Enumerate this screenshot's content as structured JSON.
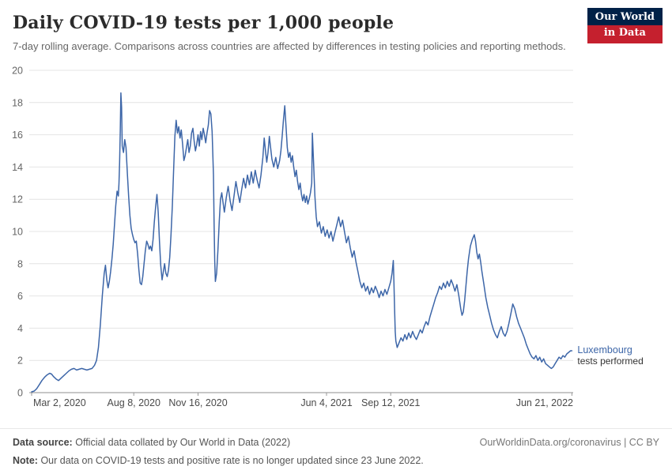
{
  "header": {
    "title": "Daily COVID-19 tests per 1,000 people",
    "subtitle": "7-day rolling average. Comparisons across countries are affected by differences in testing policies and reporting methods.",
    "logo": {
      "line1": "Our World",
      "line2": "in Data"
    }
  },
  "footer": {
    "source_label": "Data source:",
    "source_text": "Official data collated by Our World in Data (2022)",
    "right_text": "OurWorldinData.org/coronavirus | CC BY",
    "note_label": "Note:",
    "note_text": "Our data on COVID-19 tests and positive rate is no longer updated since 23 June 2022."
  },
  "colors": {
    "line": "#3d66a8",
    "entity_label": "#3d66a8",
    "entity_sublabel": "#333333",
    "grid": "#e4e4e4",
    "axis_baseline": "#8f8f8f",
    "tick_mark": "#999999",
    "y_tick_text": "#666666",
    "x_tick_text": "#4a4a4a",
    "logo_navy": "#002147",
    "logo_red": "#c5202e"
  },
  "chart_data": {
    "type": "line",
    "title": "Daily COVID-19 tests per 1,000 people",
    "series_name": "Luxembourg",
    "series_sublabel": "tests performed",
    "x_unit": "days since Mar 2, 2020",
    "x_domain": [
      0,
      843
    ],
    "ylim": [
      0,
      20
    ],
    "y_ticks": [
      0,
      2,
      4,
      6,
      8,
      10,
      12,
      14,
      16,
      18,
      20
    ],
    "x_ticks": [
      {
        "label": "Mar 2, 2020",
        "day": 0
      },
      {
        "label": "Aug 8, 2020",
        "day": 159
      },
      {
        "label": "Nov 16, 2020",
        "day": 259
      },
      {
        "label": "Jun 4, 2021",
        "day": 459
      },
      {
        "label": "Sep 12, 2021",
        "day": 559
      },
      {
        "label": "Jun 21, 2022",
        "day": 841
      }
    ],
    "grid": true,
    "legend_position": "line-end",
    "points": [
      [
        0,
        0.05
      ],
      [
        4,
        0.1
      ],
      [
        8,
        0.25
      ],
      [
        12,
        0.5
      ],
      [
        16,
        0.75
      ],
      [
        20,
        0.95
      ],
      [
        24,
        1.1
      ],
      [
        28,
        1.2
      ],
      [
        31,
        1.15
      ],
      [
        34,
        1.0
      ],
      [
        38,
        0.85
      ],
      [
        42,
        0.75
      ],
      [
        46,
        0.9
      ],
      [
        50,
        1.05
      ],
      [
        54,
        1.2
      ],
      [
        58,
        1.35
      ],
      [
        62,
        1.45
      ],
      [
        66,
        1.5
      ],
      [
        70,
        1.4
      ],
      [
        74,
        1.45
      ],
      [
        78,
        1.5
      ],
      [
        82,
        1.45
      ],
      [
        86,
        1.4
      ],
      [
        90,
        1.45
      ],
      [
        94,
        1.5
      ],
      [
        98,
        1.7
      ],
      [
        101,
        2.0
      ],
      [
        104,
        2.8
      ],
      [
        107,
        4.2
      ],
      [
        110,
        6.0
      ],
      [
        113,
        7.4
      ],
      [
        115,
        7.9
      ],
      [
        117,
        7.0
      ],
      [
        119,
        6.5
      ],
      [
        121,
        6.9
      ],
      [
        123,
        7.5
      ],
      [
        125,
        8.3
      ],
      [
        127,
        9.2
      ],
      [
        129,
        10.4
      ],
      [
        131,
        11.6
      ],
      [
        133,
        12.5
      ],
      [
        135,
        12.2
      ],
      [
        136,
        13.0
      ],
      [
        137,
        14.3
      ],
      [
        138,
        16.2
      ],
      [
        139,
        18.6
      ],
      [
        140,
        17.7
      ],
      [
        141,
        15.3
      ],
      [
        143,
        14.9
      ],
      [
        145,
        15.7
      ],
      [
        147,
        15.2
      ],
      [
        149,
        13.6
      ],
      [
        151,
        12.2
      ],
      [
        153,
        11.0
      ],
      [
        155,
        10.2
      ],
      [
        157,
        9.8
      ],
      [
        159,
        9.5
      ],
      [
        161,
        9.3
      ],
      [
        163,
        9.4
      ],
      [
        165,
        8.6
      ],
      [
        167,
        7.6
      ],
      [
        169,
        6.8
      ],
      [
        171,
        6.7
      ],
      [
        173,
        7.2
      ],
      [
        175,
        8.0
      ],
      [
        177,
        8.8
      ],
      [
        179,
        9.4
      ],
      [
        181,
        9.2
      ],
      [
        183,
        8.9
      ],
      [
        185,
        9.1
      ],
      [
        187,
        8.8
      ],
      [
        189,
        9.5
      ],
      [
        191,
        10.6
      ],
      [
        193,
        11.5
      ],
      [
        195,
        12.3
      ],
      [
        197,
        11.2
      ],
      [
        199,
        9.4
      ],
      [
        201,
        7.9
      ],
      [
        203,
        7.0
      ],
      [
        205,
        7.5
      ],
      [
        207,
        8.0
      ],
      [
        209,
        7.4
      ],
      [
        211,
        7.2
      ],
      [
        213,
        7.6
      ],
      [
        215,
        8.4
      ],
      [
        217,
        9.8
      ],
      [
        219,
        11.6
      ],
      [
        221,
        13.8
      ],
      [
        223,
        15.9
      ],
      [
        225,
        16.9
      ],
      [
        227,
        16.1
      ],
      [
        229,
        16.5
      ],
      [
        231,
        15.8
      ],
      [
        233,
        16.3
      ],
      [
        235,
        15.4
      ],
      [
        237,
        14.4
      ],
      [
        239,
        14.7
      ],
      [
        241,
        15.2
      ],
      [
        243,
        15.7
      ],
      [
        245,
        14.9
      ],
      [
        247,
        15.3
      ],
      [
        249,
        16.1
      ],
      [
        251,
        16.4
      ],
      [
        253,
        15.6
      ],
      [
        255,
        15.0
      ],
      [
        257,
        15.4
      ],
      [
        259,
        16.0
      ],
      [
        261,
        15.3
      ],
      [
        263,
        16.2
      ],
      [
        265,
        15.7
      ],
      [
        267,
        16.4
      ],
      [
        269,
        16.0
      ],
      [
        271,
        15.5
      ],
      [
        273,
        16.1
      ],
      [
        275,
        16.6
      ],
      [
        277,
        17.5
      ],
      [
        279,
        17.3
      ],
      [
        281,
        16.2
      ],
      [
        283,
        13.5
      ],
      [
        284,
        10.5
      ],
      [
        285,
        8.2
      ],
      [
        286,
        6.9
      ],
      [
        288,
        7.4
      ],
      [
        290,
        8.8
      ],
      [
        292,
        10.6
      ],
      [
        294,
        12.0
      ],
      [
        296,
        12.4
      ],
      [
        298,
        11.8
      ],
      [
        300,
        11.2
      ],
      [
        303,
        12.1
      ],
      [
        306,
        12.8
      ],
      [
        309,
        11.9
      ],
      [
        312,
        11.3
      ],
      [
        315,
        12.2
      ],
      [
        318,
        13.1
      ],
      [
        321,
        12.4
      ],
      [
        324,
        11.8
      ],
      [
        327,
        12.6
      ],
      [
        330,
        13.3
      ],
      [
        333,
        12.7
      ],
      [
        336,
        13.5
      ],
      [
        339,
        12.9
      ],
      [
        342,
        13.7
      ],
      [
        345,
        13.0
      ],
      [
        348,
        13.8
      ],
      [
        351,
        13.2
      ],
      [
        354,
        12.7
      ],
      [
        357,
        13.5
      ],
      [
        360,
        14.6
      ],
      [
        362,
        15.8
      ],
      [
        364,
        15.0
      ],
      [
        366,
        14.3
      ],
      [
        368,
        14.9
      ],
      [
        370,
        15.9
      ],
      [
        372,
        15.2
      ],
      [
        374,
        14.5
      ],
      [
        377,
        14.0
      ],
      [
        380,
        14.6
      ],
      [
        383,
        13.9
      ],
      [
        386,
        14.4
      ],
      [
        388,
        15.0
      ],
      [
        390,
        15.9
      ],
      [
        392,
        16.9
      ],
      [
        394,
        17.8
      ],
      [
        396,
        16.5
      ],
      [
        398,
        15.2
      ],
      [
        400,
        14.6
      ],
      [
        402,
        14.9
      ],
      [
        404,
        14.3
      ],
      [
        406,
        14.7
      ],
      [
        408,
        14.0
      ],
      [
        410,
        13.4
      ],
      [
        412,
        13.8
      ],
      [
        414,
        13.1
      ],
      [
        416,
        12.6
      ],
      [
        418,
        13.0
      ],
      [
        420,
        12.3
      ],
      [
        422,
        11.9
      ],
      [
        424,
        12.3
      ],
      [
        426,
        11.8
      ],
      [
        428,
        12.2
      ],
      [
        430,
        11.7
      ],
      [
        432,
        12.0
      ],
      [
        434,
        12.4
      ],
      [
        436,
        13.0
      ],
      [
        437,
        16.1
      ],
      [
        439,
        14.2
      ],
      [
        441,
        12.2
      ],
      [
        443,
        10.9
      ],
      [
        445,
        10.3
      ],
      [
        448,
        10.6
      ],
      [
        451,
        9.9
      ],
      [
        454,
        10.3
      ],
      [
        457,
        9.7
      ],
      [
        460,
        10.1
      ],
      [
        463,
        9.6
      ],
      [
        466,
        10.0
      ],
      [
        469,
        9.4
      ],
      [
        472,
        9.9
      ],
      [
        475,
        10.4
      ],
      [
        478,
        10.9
      ],
      [
        481,
        10.3
      ],
      [
        484,
        10.7
      ],
      [
        487,
        10.0
      ],
      [
        490,
        9.3
      ],
      [
        493,
        9.7
      ],
      [
        496,
        9.0
      ],
      [
        499,
        8.4
      ],
      [
        502,
        8.8
      ],
      [
        505,
        8.1
      ],
      [
        508,
        7.5
      ],
      [
        511,
        6.9
      ],
      [
        514,
        6.5
      ],
      [
        517,
        6.8
      ],
      [
        520,
        6.3
      ],
      [
        523,
        6.6
      ],
      [
        526,
        6.1
      ],
      [
        529,
        6.5
      ],
      [
        532,
        6.2
      ],
      [
        535,
        6.6
      ],
      [
        538,
        6.3
      ],
      [
        541,
        5.9
      ],
      [
        544,
        6.3
      ],
      [
        547,
        6.0
      ],
      [
        550,
        6.4
      ],
      [
        553,
        6.1
      ],
      [
        556,
        6.5
      ],
      [
        559,
        6.9
      ],
      [
        561,
        7.4
      ],
      [
        563,
        8.2
      ],
      [
        564,
        6.8
      ],
      [
        565,
        5.2
      ],
      [
        566,
        3.8
      ],
      [
        567,
        3.2
      ],
      [
        569,
        2.8
      ],
      [
        572,
        3.1
      ],
      [
        575,
        3.4
      ],
      [
        578,
        3.2
      ],
      [
        581,
        3.6
      ],
      [
        584,
        3.3
      ],
      [
        587,
        3.7
      ],
      [
        590,
        3.4
      ],
      [
        593,
        3.8
      ],
      [
        596,
        3.5
      ],
      [
        599,
        3.3
      ],
      [
        602,
        3.6
      ],
      [
        605,
        3.9
      ],
      [
        608,
        3.7
      ],
      [
        611,
        4.1
      ],
      [
        614,
        4.4
      ],
      [
        617,
        4.2
      ],
      [
        620,
        4.7
      ],
      [
        623,
        5.1
      ],
      [
        626,
        5.5
      ],
      [
        629,
        5.9
      ],
      [
        632,
        6.2
      ],
      [
        635,
        6.6
      ],
      [
        638,
        6.4
      ],
      [
        641,
        6.8
      ],
      [
        644,
        6.5
      ],
      [
        647,
        6.9
      ],
      [
        650,
        6.6
      ],
      [
        653,
        7.0
      ],
      [
        656,
        6.7
      ],
      [
        659,
        6.3
      ],
      [
        662,
        6.7
      ],
      [
        665,
        6.0
      ],
      [
        668,
        5.2
      ],
      [
        670,
        4.8
      ],
      [
        672,
        5.0
      ],
      [
        674,
        5.7
      ],
      [
        676,
        6.6
      ],
      [
        678,
        7.5
      ],
      [
        680,
        8.3
      ],
      [
        683,
        9.1
      ],
      [
        686,
        9.5
      ],
      [
        689,
        9.8
      ],
      [
        691,
        9.4
      ],
      [
        693,
        8.7
      ],
      [
        695,
        8.3
      ],
      [
        697,
        8.6
      ],
      [
        699,
        8.1
      ],
      [
        701,
        7.5
      ],
      [
        704,
        6.7
      ],
      [
        707,
        5.9
      ],
      [
        710,
        5.3
      ],
      [
        713,
        4.8
      ],
      [
        716,
        4.3
      ],
      [
        719,
        3.9
      ],
      [
        722,
        3.6
      ],
      [
        725,
        3.4
      ],
      [
        728,
        3.8
      ],
      [
        731,
        4.1
      ],
      [
        734,
        3.7
      ],
      [
        737,
        3.5
      ],
      [
        740,
        3.8
      ],
      [
        743,
        4.3
      ],
      [
        746,
        4.9
      ],
      [
        749,
        5.5
      ],
      [
        752,
        5.2
      ],
      [
        755,
        4.7
      ],
      [
        758,
        4.3
      ],
      [
        761,
        4.0
      ],
      [
        764,
        3.7
      ],
      [
        767,
        3.4
      ],
      [
        770,
        3.0
      ],
      [
        773,
        2.7
      ],
      [
        776,
        2.4
      ],
      [
        779,
        2.2
      ],
      [
        782,
        2.1
      ],
      [
        785,
        2.3
      ],
      [
        788,
        2.0
      ],
      [
        791,
        2.2
      ],
      [
        794,
        1.9
      ],
      [
        797,
        2.1
      ],
      [
        800,
        1.8
      ],
      [
        803,
        1.7
      ],
      [
        806,
        1.6
      ],
      [
        809,
        1.5
      ],
      [
        812,
        1.6
      ],
      [
        815,
        1.8
      ],
      [
        818,
        2.0
      ],
      [
        821,
        2.2
      ],
      [
        824,
        2.1
      ],
      [
        827,
        2.3
      ],
      [
        830,
        2.2
      ],
      [
        833,
        2.4
      ],
      [
        836,
        2.5
      ],
      [
        839,
        2.6
      ],
      [
        841,
        2.6
      ]
    ]
  }
}
